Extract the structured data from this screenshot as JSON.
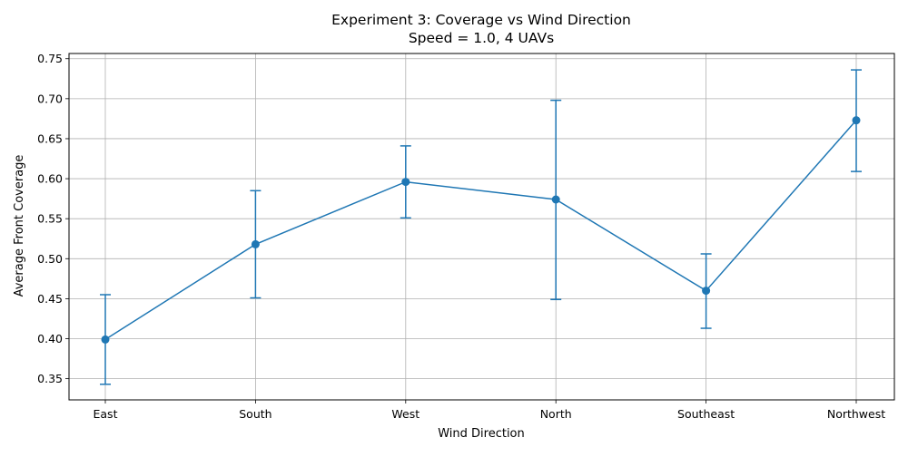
{
  "chart_data": {
    "type": "line",
    "title": "Experiment 3: Coverage vs Wind Direction",
    "subtitle": "Speed = 1.0, 4 UAVs",
    "xlabel": "Wind Direction",
    "ylabel": "Average Front Coverage",
    "categories": [
      "East",
      "South",
      "West",
      "North",
      "Southeast",
      "Northwest"
    ],
    "series": [
      {
        "values": [
          0.399,
          0.518,
          0.596,
          0.574,
          0.46,
          0.673
        ],
        "error_low": [
          0.343,
          0.451,
          0.551,
          0.449,
          0.413,
          0.609
        ],
        "error_high": [
          0.455,
          0.585,
          0.641,
          0.698,
          0.506,
          0.736
        ],
        "color": "#1f77b4",
        "marker": "circle"
      }
    ],
    "ylim": [
      0.3235,
      0.7565
    ],
    "yticks": [
      "0.35",
      "0.40",
      "0.45",
      "0.50",
      "0.55",
      "0.60",
      "0.65",
      "0.70",
      "0.75"
    ],
    "grid": true,
    "grid_color": "#b0b0b0",
    "legend": "none"
  }
}
